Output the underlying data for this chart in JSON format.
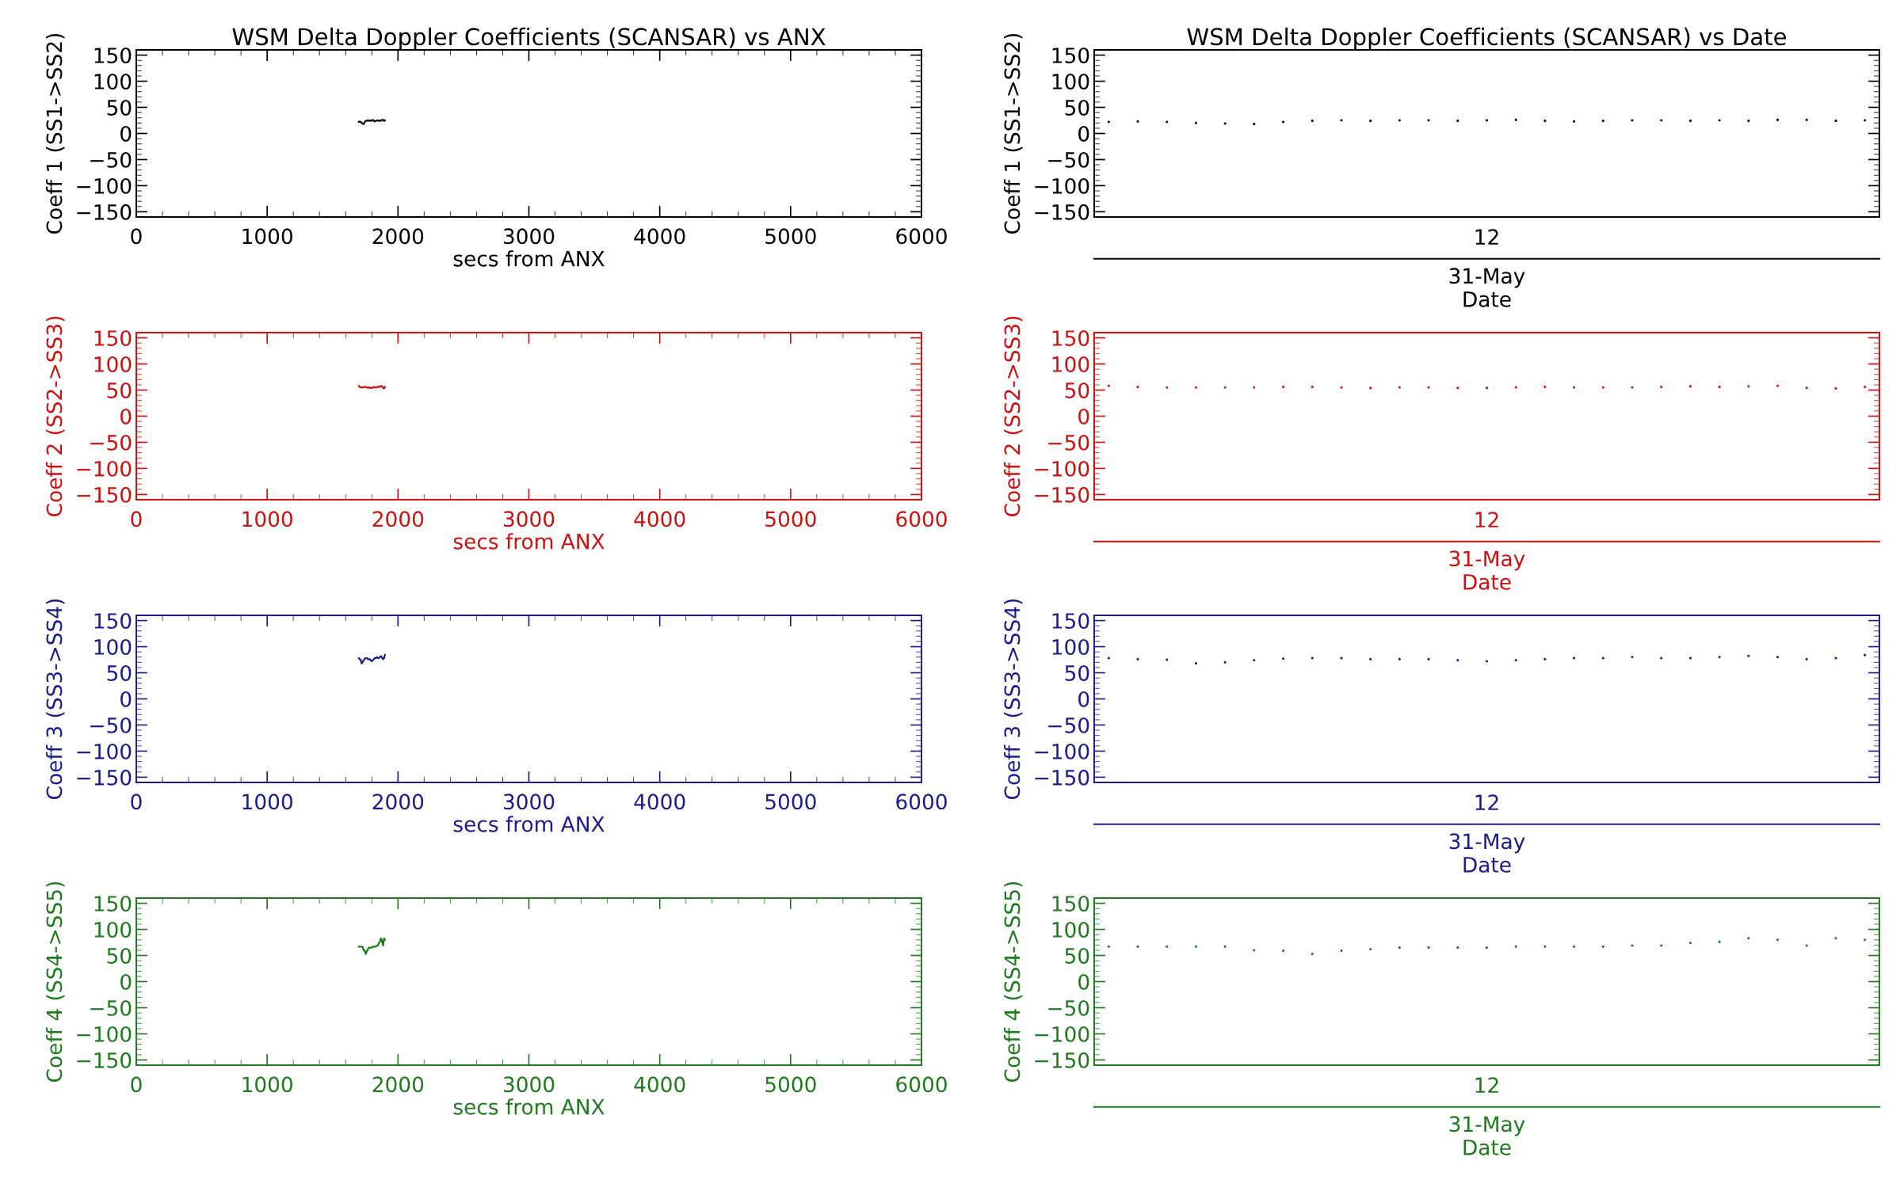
{
  "chart_data": [
    {
      "type": "line",
      "title": "WSM Delta Doppler Coefficients (SCANSAR) vs ANX",
      "xlabel": "secs from ANX",
      "ylabel": "Coeff 1 (SS1->SS2)",
      "color": "#000000",
      "x": [
        1700,
        1707,
        1715,
        1722,
        1729,
        1738,
        1746,
        1754,
        1763,
        1770,
        1777,
        1784,
        1792,
        1799,
        1808,
        1815,
        1822,
        1830,
        1839,
        1846,
        1854,
        1861,
        1869,
        1875,
        1886,
        1893,
        1900
      ],
      "values": [
        22,
        23,
        22,
        20,
        19,
        18,
        22,
        24,
        25,
        24,
        25,
        25,
        24,
        25,
        26,
        24,
        23,
        24,
        25,
        25,
        24,
        25,
        24,
        26,
        26,
        24,
        25
      ],
      "xlim": [
        0,
        6000
      ],
      "xticks": [
        0,
        1000,
        2000,
        3000,
        4000,
        5000,
        6000
      ],
      "ylim": [
        -160,
        160
      ],
      "yticks": [
        -150,
        -100,
        -50,
        0,
        50,
        100,
        150
      ],
      "line_style": "solid"
    },
    {
      "type": "scatter",
      "title": "WSM Delta Doppler Coefficients (SCANSAR) vs Date",
      "xlabel": "Date",
      "ylabel": "Coeff 1 (SS1->SS2)",
      "color": "#000000",
      "annotations": [
        "12",
        "31-May"
      ],
      "categories": [
        null,
        null,
        null,
        null,
        null,
        null,
        null,
        null,
        null,
        null,
        null,
        null,
        null,
        null,
        null,
        null,
        null,
        null,
        null,
        null,
        null,
        null,
        null,
        null,
        null,
        null,
        null
      ],
      "values": [
        22,
        23,
        22,
        20,
        19,
        18,
        22,
        24,
        25,
        24,
        25,
        25,
        24,
        25,
        26,
        24,
        23,
        24,
        25,
        25,
        24,
        25,
        24,
        26,
        26,
        24,
        25
      ],
      "ylim": [
        -160,
        160
      ],
      "yticks": [
        -150,
        -100,
        -50,
        0,
        50,
        100,
        150
      ],
      "marker": "circle"
    },
    {
      "type": "line",
      "xlabel": "secs from ANX",
      "ylabel": "Coeff 2 (SS2->SS3)",
      "color": "#cc1111",
      "x": [
        1700,
        1707,
        1715,
        1722,
        1729,
        1738,
        1746,
        1754,
        1763,
        1770,
        1777,
        1784,
        1792,
        1799,
        1808,
        1815,
        1822,
        1830,
        1839,
        1846,
        1854,
        1861,
        1869,
        1875,
        1886,
        1893,
        1900
      ],
      "values": [
        58,
        56,
        55,
        55,
        55,
        55,
        56,
        56,
        55,
        54,
        55,
        55,
        54,
        54,
        55,
        56,
        55,
        55,
        55,
        56,
        57,
        56,
        57,
        58,
        54,
        53,
        56
      ],
      "xlim": [
        0,
        6000
      ],
      "xticks": [
        0,
        1000,
        2000,
        3000,
        4000,
        5000,
        6000
      ],
      "ylim": [
        -160,
        160
      ],
      "yticks": [
        -150,
        -100,
        -50,
        0,
        50,
        100,
        150
      ],
      "line_style": "solid"
    },
    {
      "type": "scatter",
      "xlabel": "Date",
      "ylabel": "Coeff 2 (SS2->SS3)",
      "color": "#cc1111",
      "annotations": [
        "12",
        "31-May"
      ],
      "categories": [
        null,
        null,
        null,
        null,
        null,
        null,
        null,
        null,
        null,
        null,
        null,
        null,
        null,
        null,
        null,
        null,
        null,
        null,
        null,
        null,
        null,
        null,
        null,
        null,
        null,
        null,
        null
      ],
      "values": [
        58,
        56,
        55,
        55,
        55,
        55,
        56,
        56,
        55,
        54,
        55,
        55,
        54,
        54,
        55,
        56,
        55,
        55,
        55,
        56,
        57,
        56,
        57,
        58,
        54,
        53,
        56
      ],
      "ylim": [
        -160,
        160
      ],
      "yticks": [
        -150,
        -100,
        -50,
        0,
        50,
        100,
        150
      ],
      "marker": "circle"
    },
    {
      "type": "line",
      "xlabel": "secs from ANX",
      "ylabel": "Coeff 3 (SS3->SS4)",
      "color": "#1c1c8c",
      "x": [
        1700,
        1707,
        1715,
        1722,
        1729,
        1738,
        1746,
        1754,
        1763,
        1770,
        1777,
        1784,
        1792,
        1799,
        1808,
        1815,
        1822,
        1830,
        1839,
        1846,
        1854,
        1861,
        1869,
        1875,
        1886,
        1893,
        1900
      ],
      "values": [
        78,
        76,
        75,
        68,
        70,
        74,
        77,
        78,
        78,
        76,
        76,
        76,
        74,
        72,
        74,
        76,
        78,
        78,
        80,
        78,
        78,
        80,
        82,
        80,
        76,
        78,
        84
      ],
      "xlim": [
        0,
        6000
      ],
      "xticks": [
        0,
        1000,
        2000,
        3000,
        4000,
        5000,
        6000
      ],
      "ylim": [
        -160,
        160
      ],
      "yticks": [
        -150,
        -100,
        -50,
        0,
        50,
        100,
        150
      ],
      "line_style": "solid"
    },
    {
      "type": "scatter",
      "xlabel": "Date",
      "ylabel": "Coeff 3 (SS3->SS4)",
      "color": "#1c1c8c",
      "annotations": [
        "12",
        "31-May"
      ],
      "categories": [
        null,
        null,
        null,
        null,
        null,
        null,
        null,
        null,
        null,
        null,
        null,
        null,
        null,
        null,
        null,
        null,
        null,
        null,
        null,
        null,
        null,
        null,
        null,
        null,
        null,
        null,
        null
      ],
      "values": [
        78,
        76,
        75,
        68,
        70,
        74,
        77,
        78,
        78,
        76,
        76,
        76,
        74,
        72,
        74,
        76,
        78,
        78,
        80,
        78,
        78,
        80,
        82,
        80,
        76,
        78,
        84
      ],
      "ylim": [
        -160,
        160
      ],
      "yticks": [
        -150,
        -100,
        -50,
        0,
        50,
        100,
        150
      ],
      "marker": "circle"
    },
    {
      "type": "line",
      "xlabel": "secs from ANX",
      "ylabel": "Coeff 4 (SS4->SS5)",
      "color": "#1f7a1f",
      "x": [
        1700,
        1707,
        1715,
        1722,
        1729,
        1738,
        1746,
        1754,
        1763,
        1770,
        1777,
        1784,
        1792,
        1799,
        1808,
        1815,
        1822,
        1830,
        1839,
        1846,
        1854,
        1861,
        1869,
        1875,
        1886,
        1893,
        1900
      ],
      "values": [
        67,
        67,
        67,
        67,
        67,
        60,
        59,
        53,
        59,
        62,
        65,
        65,
        65,
        65,
        67,
        67,
        67,
        67,
        69,
        69,
        74,
        76,
        83,
        80,
        69,
        83,
        80
      ],
      "xlim": [
        0,
        6000
      ],
      "xticks": [
        0,
        1000,
        2000,
        3000,
        4000,
        5000,
        6000
      ],
      "ylim": [
        -160,
        160
      ],
      "yticks": [
        -150,
        -100,
        -50,
        0,
        50,
        100,
        150
      ],
      "line_style": "solid"
    },
    {
      "type": "scatter",
      "xlabel": "Date",
      "ylabel": "Coeff 4 (SS4->SS5)",
      "color": "#1f7a1f",
      "annotations": [
        "12",
        "31-May"
      ],
      "categories": [
        null,
        null,
        null,
        null,
        null,
        null,
        null,
        null,
        null,
        null,
        null,
        null,
        null,
        null,
        null,
        null,
        null,
        null,
        null,
        null,
        null,
        null,
        null,
        null,
        null,
        null,
        null
      ],
      "values": [
        67,
        67,
        67,
        67,
        67,
        60,
        59,
        53,
        59,
        62,
        65,
        65,
        65,
        65,
        67,
        67,
        67,
        67,
        69,
        69,
        74,
        76,
        83,
        80,
        69,
        83,
        80
      ],
      "ylim": [
        -160,
        160
      ],
      "yticks": [
        -150,
        -100,
        -50,
        0,
        50,
        100,
        150
      ],
      "marker": "circle"
    }
  ]
}
